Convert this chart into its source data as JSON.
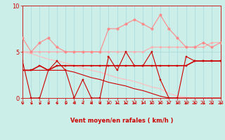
{
  "xlabel": "Vent moyen/en rafales ( km/h )",
  "background_color": "#cceee8",
  "grid_color": "#aadddd",
  "text_color": "#cc0000",
  "ylim": [
    0,
    10
  ],
  "xlim": [
    0,
    23
  ],
  "yticks": [
    0,
    5,
    10
  ],
  "xticks": [
    0,
    1,
    2,
    3,
    4,
    5,
    6,
    7,
    8,
    9,
    10,
    11,
    12,
    13,
    14,
    15,
    16,
    17,
    18,
    19,
    20,
    21,
    22,
    23
  ],
  "lines": [
    {
      "x": [
        0,
        1,
        2,
        3,
        4,
        5,
        6,
        7,
        8,
        9,
        10,
        11,
        12,
        13,
        14,
        15,
        16,
        17,
        18,
        19,
        20,
        21,
        22,
        23
      ],
      "y": [
        4.0,
        0.0,
        0.0,
        3.0,
        4.0,
        3.0,
        0.0,
        2.0,
        0.0,
        0.0,
        4.5,
        3.0,
        5.0,
        3.5,
        3.5,
        5.0,
        2.0,
        0.0,
        0.0,
        4.5,
        4.0,
        4.0,
        4.0,
        4.0
      ],
      "color": "#cc0000",
      "lw": 0.8,
      "marker": "s",
      "ms": 2.0,
      "zorder": 5
    },
    {
      "x": [
        0,
        1,
        2,
        3,
        4,
        5,
        6,
        7,
        8,
        9,
        10,
        11,
        12,
        13,
        14,
        15,
        16,
        17,
        18,
        19,
        20,
        21,
        22,
        23
      ],
      "y": [
        3.0,
        3.0,
        3.5,
        3.0,
        3.5,
        3.5,
        3.5,
        3.5,
        3.5,
        3.5,
        3.5,
        3.5,
        3.5,
        3.5,
        3.5,
        3.5,
        3.5,
        3.5,
        3.5,
        3.5,
        4.0,
        4.0,
        4.0,
        4.0
      ],
      "color": "#cc0000",
      "lw": 1.2,
      "marker": "s",
      "ms": 2.0,
      "zorder": 4
    },
    {
      "x": [
        0,
        1,
        2,
        3,
        4,
        5,
        6,
        7,
        8,
        9,
        10,
        11,
        12,
        13,
        14,
        15,
        16,
        17,
        18,
        19,
        20,
        21,
        22,
        23
      ],
      "y": [
        3.0,
        3.0,
        3.0,
        3.0,
        3.0,
        3.0,
        2.8,
        2.5,
        2.2,
        2.0,
        1.7,
        1.5,
        1.3,
        1.0,
        0.8,
        0.5,
        0.2,
        0.0,
        0.0,
        0.0,
        0.0,
        0.0,
        0.0,
        0.0
      ],
      "color": "#cc0000",
      "lw": 0.8,
      "marker": null,
      "ms": 0,
      "zorder": 3
    },
    {
      "x": [
        0,
        1,
        2,
        3,
        4,
        5,
        6,
        7,
        8,
        9,
        10,
        11,
        12,
        13,
        14,
        15,
        16,
        17,
        18,
        19,
        20,
        21,
        22,
        23
      ],
      "y": [
        6.5,
        5.0,
        6.0,
        6.5,
        5.5,
        5.0,
        5.0,
        5.0,
        5.0,
        5.0,
        7.5,
        7.5,
        8.0,
        8.5,
        8.0,
        7.5,
        9.0,
        7.5,
        6.5,
        5.5,
        5.5,
        6.0,
        5.5,
        6.0
      ],
      "color": "#ff8888",
      "lw": 0.8,
      "marker": "o",
      "ms": 2.5,
      "zorder": 3
    },
    {
      "x": [
        0,
        1,
        2,
        3,
        4,
        5,
        6,
        7,
        8,
        9,
        10,
        11,
        12,
        13,
        14,
        15,
        16,
        17,
        18,
        19,
        20,
        21,
        22,
        23
      ],
      "y": [
        5.0,
        5.0,
        5.0,
        5.0,
        5.0,
        5.0,
        5.0,
        5.0,
        5.0,
        5.0,
        5.0,
        5.0,
        5.0,
        5.0,
        5.0,
        5.5,
        5.5,
        5.5,
        5.5,
        5.5,
        5.5,
        5.5,
        6.0,
        6.0
      ],
      "color": "#ffaaaa",
      "lw": 0.8,
      "marker": "o",
      "ms": 2.0,
      "zorder": 2
    },
    {
      "x": [
        0,
        1,
        2,
        3,
        4,
        5,
        6,
        7,
        8,
        9,
        10,
        11,
        12,
        13,
        14,
        15,
        16,
        17,
        18,
        19,
        20,
        21,
        22,
        23
      ],
      "y": [
        5.0,
        4.8,
        4.5,
        4.2,
        4.0,
        3.8,
        3.5,
        3.2,
        3.0,
        2.8,
        2.5,
        2.2,
        2.0,
        1.8,
        1.5,
        1.2,
        1.0,
        0.5,
        0.2,
        0.1,
        0.0,
        0.0,
        0.0,
        0.0
      ],
      "color": "#ffbbbb",
      "lw": 0.8,
      "marker": null,
      "ms": 0,
      "zorder": 2
    }
  ],
  "arrows_x": [
    0,
    1,
    2,
    3,
    4,
    5,
    6,
    7,
    8,
    9,
    10,
    11,
    12,
    13,
    14,
    15,
    16,
    17,
    18,
    19,
    20,
    21,
    22,
    23
  ],
  "arrows_angles_deg": [
    225,
    225,
    225,
    225,
    225,
    225,
    270,
    270,
    270,
    270,
    90,
    90,
    90,
    90,
    90,
    90,
    90,
    90,
    90,
    225,
    225,
    225,
    225,
    225
  ]
}
